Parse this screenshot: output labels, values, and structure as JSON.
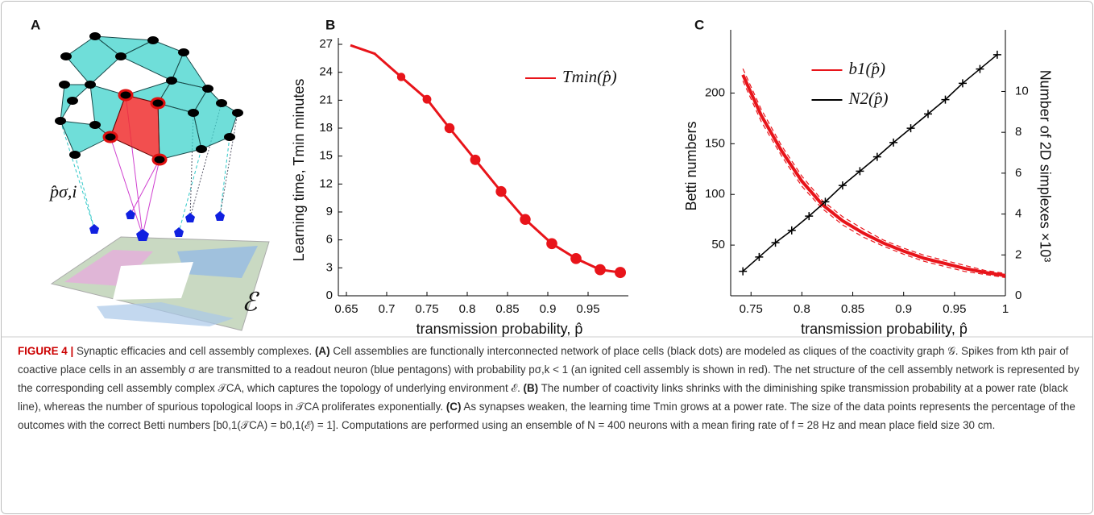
{
  "diagram": {
    "panel": "A",
    "readout_label": "p̂σ,i",
    "environment_label": "ℰ"
  },
  "chart_data": [
    {
      "type": "line",
      "panel": "B",
      "xlabel": "transmission probability, p̂",
      "ylabel": "Learning time, Tmin minutes",
      "xlim": [
        0.64,
        1.0
      ],
      "xticks": [
        0.65,
        0.7,
        0.75,
        0.8,
        0.85,
        0.9,
        0.95
      ],
      "ylim": [
        0,
        27
      ],
      "yticks": [
        0,
        3,
        6,
        9,
        12,
        15,
        18,
        21,
        24,
        27
      ],
      "legend": "upper right",
      "series": [
        {
          "name": "Tmin(p̂)",
          "color": "#e8141a",
          "marker": "circle",
          "x": [
            0.655,
            0.685,
            0.718,
            0.75,
            0.778,
            0.81,
            0.842,
            0.872,
            0.905,
            0.935,
            0.965,
            0.99
          ],
          "values": [
            26.9,
            26.0,
            23.5,
            21.1,
            18.0,
            14.6,
            11.2,
            8.2,
            5.6,
            4.0,
            2.8,
            2.5
          ],
          "sizes": [
            null,
            5,
            55,
            60,
            80,
            85,
            90,
            92,
            95,
            95,
            97,
            100
          ]
        }
      ]
    },
    {
      "type": "line",
      "panel": "C",
      "xlabel": "transmission probability, p̂",
      "ylabel": "Betti numbers",
      "y2label": "Number of 2D simplexes ×10³",
      "xlim": [
        0.73,
        1.0
      ],
      "xticks": [
        0.75,
        0.8,
        0.85,
        0.9,
        0.95,
        1
      ],
      "ylim": [
        0,
        256
      ],
      "yticks": [
        50,
        100,
        150,
        200
      ],
      "y2lim": [
        0,
        12.7
      ],
      "y2ticks": [
        0,
        2,
        4,
        6,
        8,
        10
      ],
      "legend": "upper center",
      "series": [
        {
          "name": "b1(p̂)",
          "color": "#e8141a",
          "x": [
            0.742,
            0.76,
            0.78,
            0.8,
            0.82,
            0.84,
            0.86,
            0.88,
            0.9,
            0.92,
            0.94,
            0.96,
            0.98,
            1.0
          ],
          "values": [
            218,
            178,
            143,
            113,
            90,
            74,
            62,
            52,
            44,
            37,
            32,
            27,
            23,
            20
          ],
          "errors": [
            6,
            6,
            5,
            5,
            4,
            4,
            4,
            3,
            3,
            3,
            3,
            3,
            2,
            2
          ]
        },
        {
          "name": "N2(p̂)",
          "color": "#000000",
          "axis": "y2",
          "marker": "plus",
          "x": [
            0.742,
            0.758,
            0.774,
            0.79,
            0.807,
            0.823,
            0.84,
            0.857,
            0.874,
            0.89,
            0.907,
            0.924,
            0.941,
            0.958,
            0.975,
            0.992
          ],
          "values": [
            1.2,
            1.9,
            2.6,
            3.2,
            3.9,
            4.6,
            5.4,
            6.1,
            6.8,
            7.5,
            8.2,
            8.9,
            9.6,
            10.4,
            11.1,
            11.8
          ]
        }
      ]
    }
  ],
  "caption": {
    "figure": "FIGURE 4 |",
    "title": "Synaptic efficacies and cell assembly complexes.",
    "sections": [
      {
        "label": "(A)",
        "text": "Cell assemblies are functionally interconnected network of place cells (black dots) are modeled as cliques of the coactivity graph 𝒢. Spikes from kth pair of coactive place cells in an assembly σ are transmitted to a readout neuron (blue pentagons) with probability pσ,k < 1 (an ignited cell assembly is shown in red). The net structure of the cell assembly network is represented by the corresponding cell assembly complex 𝒯CA, which captures the topology of underlying environment ℰ."
      },
      {
        "label": "(B)",
        "text": "The number of coactivity links shrinks with the diminishing spike transmission probability at a power rate (black line), whereas the number of spurious topological loops in 𝒯CA proliferates exponentially."
      },
      {
        "label": "(C)",
        "text": "As synapses weaken, the learning time Tmin grows at a power rate. The size of the data points represents the percentage of the outcomes with the correct Betti numbers [b0,1(𝒯CA) = b0,1(ℰ) = 1]. Computations are performed using an ensemble of N = 400 neurons with a mean firing rate of f = 28 Hz and mean place field size 30 cm."
      }
    ]
  }
}
